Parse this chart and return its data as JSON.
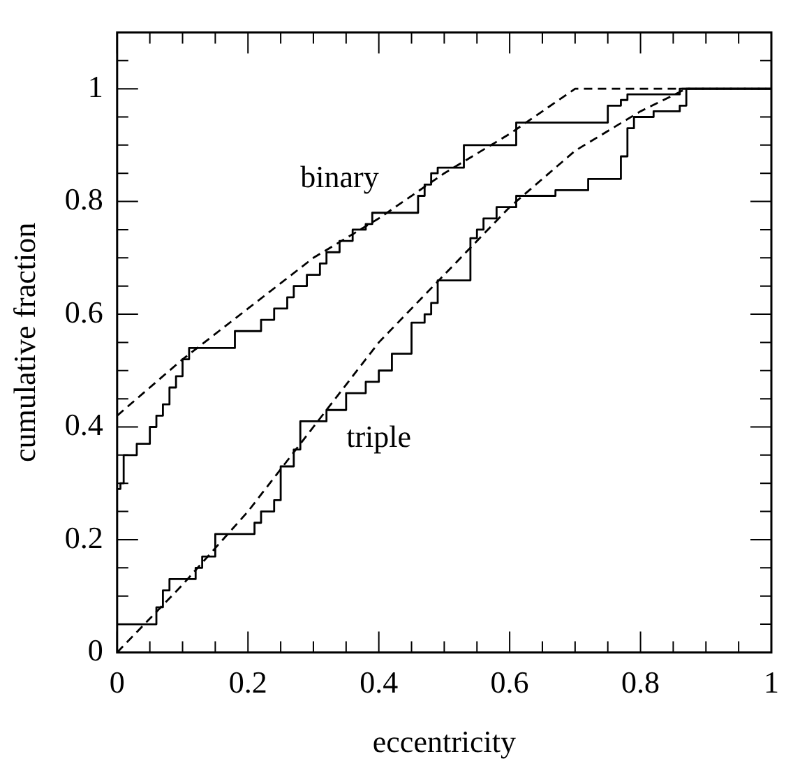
{
  "chart_data": {
    "type": "step",
    "xlabel": "eccentricity",
    "ylabel": "cumulative fraction",
    "xlim": [
      0,
      1
    ],
    "ylim": [
      0,
      1.1
    ],
    "xticks": [
      0,
      {
        "value": 0.05,
        "label": null
      },
      {
        "value": 0.1,
        "label": null
      },
      {
        "value": 0.15,
        "label": null
      },
      0.2,
      {
        "value": 0.25,
        "label": null
      },
      {
        "value": 0.3,
        "label": null
      },
      {
        "value": 0.35,
        "label": null
      },
      0.4,
      {
        "value": 0.45,
        "label": null
      },
      {
        "value": 0.5,
        "label": null
      },
      {
        "value": 0.55,
        "label": null
      },
      0.6,
      {
        "value": 0.65,
        "label": null
      },
      {
        "value": 0.7,
        "label": null
      },
      {
        "value": 0.75,
        "label": null
      },
      0.8,
      {
        "value": 0.85,
        "label": null
      },
      {
        "value": 0.9,
        "label": null
      },
      {
        "value": 0.95,
        "label": null
      },
      1
    ],
    "yticks": [
      0,
      {
        "value": 0.05,
        "label": null
      },
      {
        "value": 0.1,
        "label": null
      },
      {
        "value": 0.15,
        "label": null
      },
      0.2,
      {
        "value": 0.25,
        "label": null
      },
      {
        "value": 0.3,
        "label": null
      },
      {
        "value": 0.35,
        "label": null
      },
      0.4,
      {
        "value": 0.45,
        "label": null
      },
      {
        "value": 0.5,
        "label": null
      },
      {
        "value": 0.55,
        "label": null
      },
      0.6,
      {
        "value": 0.65,
        "label": null
      },
      {
        "value": 0.7,
        "label": null
      },
      {
        "value": 0.75,
        "label": null
      },
      0.8,
      {
        "value": 0.85,
        "label": null
      },
      {
        "value": 0.9,
        "label": null
      },
      {
        "value": 0.95,
        "label": null
      },
      1,
      {
        "value": 1.05,
        "label": null
      }
    ],
    "grid": false,
    "legend": false,
    "series": [
      {
        "type": "step",
        "color": "#000000",
        "line_style": "solid",
        "x": [
          0,
          0.005,
          0.01,
          0.03,
          0.05,
          0.06,
          0.07,
          0.08,
          0.09,
          0.1,
          0.11,
          0.18,
          0.22,
          0.24,
          0.26,
          0.27,
          0.29,
          0.31,
          0.32,
          0.34,
          0.36,
          0.38,
          0.39,
          0.46,
          0.47,
          0.48,
          0.49,
          0.53,
          0.61,
          0.75,
          0.77,
          0.78,
          0.86,
          0.87,
          1
        ],
        "values": [
          0.29,
          0.3,
          0.35,
          0.37,
          0.4,
          0.42,
          0.44,
          0.47,
          0.49,
          0.52,
          0.54,
          0.57,
          0.59,
          0.61,
          0.63,
          0.65,
          0.67,
          0.69,
          0.71,
          0.73,
          0.75,
          0.76,
          0.78,
          0.81,
          0.83,
          0.85,
          0.86,
          0.9,
          0.94,
          0.97,
          0.98,
          0.99,
          1.0,
          1.0,
          1.0
        ]
      },
      {
        "type": "line",
        "color": "#000000",
        "line_style": "dashed",
        "x": [
          0,
          0.1,
          0.2,
          0.3,
          0.4,
          0.5,
          0.6,
          0.7,
          1
        ],
        "values": [
          0.42,
          0.52,
          0.61,
          0.7,
          0.77,
          0.85,
          0.92,
          1.0,
          1.0
        ]
      },
      {
        "type": "step",
        "color": "#000000",
        "line_style": "solid",
        "x": [
          0,
          0.06,
          0.07,
          0.08,
          0.09,
          0.12,
          0.13,
          0.15,
          0.21,
          0.22,
          0.24,
          0.25,
          0.27,
          0.28,
          0.29,
          0.32,
          0.35,
          0.38,
          0.4,
          0.42,
          0.45,
          0.47,
          0.48,
          0.49,
          0.54,
          0.55,
          0.56,
          0.58,
          0.61,
          0.67,
          0.72,
          0.77,
          0.78,
          0.79,
          0.82,
          0.86,
          0.87,
          1
        ],
        "values": [
          0.05,
          0.08,
          0.11,
          0.13,
          0.13,
          0.15,
          0.17,
          0.21,
          0.23,
          0.25,
          0.27,
          0.33,
          0.36,
          0.41,
          0.41,
          0.43,
          0.46,
          0.48,
          0.5,
          0.53,
          0.585,
          0.6,
          0.62,
          0.66,
          0.735,
          0.75,
          0.77,
          0.79,
          0.81,
          0.82,
          0.84,
          0.88,
          0.93,
          0.95,
          0.96,
          0.97,
          1.0,
          1.0
        ]
      },
      {
        "type": "line",
        "color": "#000000",
        "line_style": "dashed",
        "x": [
          0,
          0.1,
          0.2,
          0.3,
          0.4,
          0.5,
          0.6,
          0.7,
          0.8,
          0.87,
          1
        ],
        "values": [
          0,
          0.12,
          0.25,
          0.4,
          0.55,
          0.67,
          0.79,
          0.89,
          0.96,
          1.0,
          1.0
        ]
      }
    ],
    "annotations": [
      "binary",
      "triple"
    ]
  }
}
